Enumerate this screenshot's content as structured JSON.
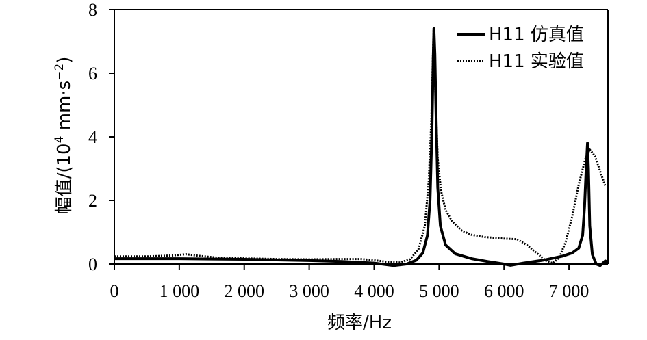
{
  "chart_data": {
    "type": "line",
    "xlabel": "频率/Hz",
    "ylabel_main": "幅值/(10",
    "ylabel_sup": "4",
    "ylabel_unit": " mm·s",
    "ylabel_unit_sup": "−2",
    "ylabel_close": ")",
    "xlim": [
      0,
      7600
    ],
    "ylim": [
      0,
      8
    ],
    "x_ticks": [
      {
        "value": 0,
        "label": "0"
      },
      {
        "value": 1000,
        "label": "1 000"
      },
      {
        "value": 2000,
        "label": "2 000"
      },
      {
        "value": 3000,
        "label": "3 000"
      },
      {
        "value": 4000,
        "label": "4 000"
      },
      {
        "value": 5000,
        "label": "5 000"
      },
      {
        "value": 6000,
        "label": "6 000"
      },
      {
        "value": 7000,
        "label": "7 000"
      }
    ],
    "y_ticks": [
      {
        "value": 0,
        "label": "0"
      },
      {
        "value": 2,
        "label": "2"
      },
      {
        "value": 4,
        "label": "4"
      },
      {
        "value": 6,
        "label": "6"
      },
      {
        "value": 8,
        "label": "8"
      }
    ],
    "series": [
      {
        "name": "H11 仿真值",
        "style": "solid",
        "color": "#000000",
        "points": [
          [
            0,
            0.17
          ],
          [
            500,
            0.17
          ],
          [
            1000,
            0.17
          ],
          [
            1500,
            0.16
          ],
          [
            2000,
            0.15
          ],
          [
            2500,
            0.13
          ],
          [
            3000,
            0.11
          ],
          [
            3500,
            0.08
          ],
          [
            4000,
            0.03
          ],
          [
            4300,
            -0.05
          ],
          [
            4500,
            0.0
          ],
          [
            4650,
            0.12
          ],
          [
            4750,
            0.35
          ],
          [
            4820,
            0.9
          ],
          [
            4860,
            2.0
          ],
          [
            4890,
            4.2
          ],
          [
            4910,
            6.5
          ],
          [
            4920,
            7.4
          ],
          [
            4935,
            6.6
          ],
          [
            4955,
            4.5
          ],
          [
            4980,
            2.4
          ],
          [
            5020,
            1.2
          ],
          [
            5100,
            0.6
          ],
          [
            5250,
            0.32
          ],
          [
            5500,
            0.17
          ],
          [
            5750,
            0.08
          ],
          [
            6000,
            0.0
          ],
          [
            6100,
            -0.04
          ],
          [
            6300,
            0.03
          ],
          [
            6600,
            0.12
          ],
          [
            6900,
            0.25
          ],
          [
            7050,
            0.35
          ],
          [
            7150,
            0.5
          ],
          [
            7210,
            0.9
          ],
          [
            7240,
            1.8
          ],
          [
            7265,
            3.0
          ],
          [
            7285,
            3.8
          ],
          [
            7300,
            3.0
          ],
          [
            7320,
            1.2
          ],
          [
            7360,
            0.3
          ],
          [
            7420,
            0.0
          ],
          [
            7480,
            -0.05
          ],
          [
            7560,
            0.1
          ],
          [
            7600,
            0.05
          ]
        ]
      },
      {
        "name": "H11 实验值",
        "style": "dotted",
        "color": "#000000",
        "points": [
          [
            0,
            0.24
          ],
          [
            500,
            0.24
          ],
          [
            900,
            0.27
          ],
          [
            1100,
            0.31
          ],
          [
            1300,
            0.26
          ],
          [
            1600,
            0.2
          ],
          [
            2000,
            0.18
          ],
          [
            2500,
            0.16
          ],
          [
            3000,
            0.15
          ],
          [
            3500,
            0.16
          ],
          [
            3800,
            0.16
          ],
          [
            4000,
            0.12
          ],
          [
            4200,
            0.07
          ],
          [
            4400,
            0.05
          ],
          [
            4550,
            0.15
          ],
          [
            4680,
            0.45
          ],
          [
            4780,
            1.2
          ],
          [
            4840,
            2.6
          ],
          [
            4880,
            4.5
          ],
          [
            4905,
            6.5
          ],
          [
            4915,
            7.4
          ],
          [
            4925,
            6.8
          ],
          [
            4945,
            5.2
          ],
          [
            4980,
            3.3
          ],
          [
            5030,
            2.3
          ],
          [
            5100,
            1.7
          ],
          [
            5200,
            1.35
          ],
          [
            5350,
            1.05
          ],
          [
            5500,
            0.92
          ],
          [
            5700,
            0.85
          ],
          [
            6000,
            0.8
          ],
          [
            6200,
            0.78
          ],
          [
            6350,
            0.6
          ],
          [
            6500,
            0.35
          ],
          [
            6650,
            0.1
          ],
          [
            6750,
            0.03
          ],
          [
            6850,
            0.2
          ],
          [
            6950,
            0.7
          ],
          [
            7050,
            1.5
          ],
          [
            7150,
            2.5
          ],
          [
            7250,
            3.3
          ],
          [
            7320,
            3.6
          ],
          [
            7400,
            3.4
          ],
          [
            7500,
            2.8
          ],
          [
            7560,
            2.45
          ]
        ]
      }
    ],
    "legend": "top-right"
  }
}
